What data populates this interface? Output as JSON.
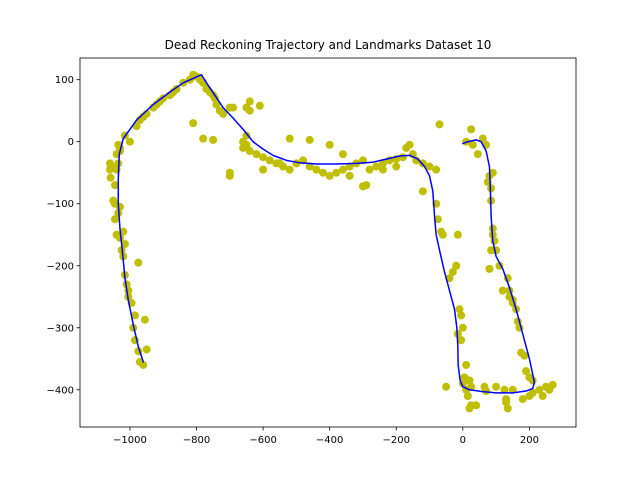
{
  "chart_data": {
    "type": "scatter",
    "title": "Dead Reckoning Trajectory and Landmarks Dataset 10",
    "xlabel": "",
    "ylabel": "",
    "xlim": [
      -1150,
      340
    ],
    "ylim": [
      -460,
      135
    ],
    "x_ticks": [
      -1000,
      -800,
      -600,
      -400,
      -200,
      0,
      200
    ],
    "x_tick_labels": [
      "−1000",
      "−800",
      "−600",
      "−400",
      "−200",
      "0",
      "200"
    ],
    "y_ticks": [
      100,
      0,
      -100,
      -200,
      -300,
      -400
    ],
    "y_tick_labels": [
      "100",
      "0",
      "−100",
      "−200",
      "−300",
      "−400"
    ],
    "grid": false,
    "legend": "none",
    "colors": {
      "landmarks": "#bfbf00",
      "trajectory": "#0000ff",
      "axes": "#000000"
    },
    "series": [
      {
        "kind": "scatter",
        "marker": "circle",
        "points": [
          [
            -970,
            -355
          ],
          [
            -960,
            -360
          ],
          [
            -950,
            -335
          ],
          [
            -955,
            -287
          ],
          [
            -975,
            -338
          ],
          [
            -985,
            -320
          ],
          [
            -990,
            -300
          ],
          [
            -985,
            -280
          ],
          [
            -995,
            -260
          ],
          [
            -1005,
            -250
          ],
          [
            -1010,
            -230
          ],
          [
            -1015,
            -215
          ],
          [
            -1005,
            -240
          ],
          [
            -975,
            -195
          ],
          [
            -1020,
            -185
          ],
          [
            -1025,
            -175
          ],
          [
            -1015,
            -165
          ],
          [
            -1020,
            -145
          ],
          [
            -1030,
            -155
          ],
          [
            -1040,
            -150
          ],
          [
            -1045,
            -125
          ],
          [
            -1035,
            -115
          ],
          [
            -1045,
            -100
          ],
          [
            -1050,
            -95
          ],
          [
            -1030,
            -105
          ],
          [
            -1045,
            -70
          ],
          [
            -1040,
            -45
          ],
          [
            -1035,
            -35
          ],
          [
            -1040,
            -20
          ],
          [
            -1030,
            -15
          ],
          [
            -1035,
            -5
          ],
          [
            -1030,
            -10
          ],
          [
            -1060,
            -35
          ],
          [
            -1060,
            -45
          ],
          [
            -1058,
            -58
          ],
          [
            -1055,
            -40
          ],
          [
            -1000,
            0
          ],
          [
            -1015,
            10
          ],
          [
            -980,
            25
          ],
          [
            -970,
            35
          ],
          [
            -960,
            40
          ],
          [
            -950,
            45
          ],
          [
            -930,
            55
          ],
          [
            -920,
            60
          ],
          [
            -910,
            65
          ],
          [
            -900,
            70
          ],
          [
            -880,
            75
          ],
          [
            -870,
            80
          ],
          [
            -860,
            85
          ],
          [
            -840,
            95
          ],
          [
            -820,
            100
          ],
          [
            -810,
            108
          ],
          [
            -800,
            105
          ],
          [
            -790,
            100
          ],
          [
            -780,
            95
          ],
          [
            -770,
            85
          ],
          [
            -760,
            80
          ],
          [
            -750,
            75
          ],
          [
            -745,
            70
          ],
          [
            -740,
            60
          ],
          [
            -730,
            50
          ],
          [
            -720,
            45
          ],
          [
            -700,
            55
          ],
          [
            -690,
            55
          ],
          [
            -650,
            55
          ],
          [
            -640,
            50
          ],
          [
            -640,
            65
          ],
          [
            -610,
            58
          ],
          [
            -650,
            10
          ],
          [
            -660,
            0
          ],
          [
            -650,
            -5
          ],
          [
            -660,
            -10
          ],
          [
            -640,
            -15
          ],
          [
            -620,
            -20
          ],
          [
            -600,
            -25
          ],
          [
            -580,
            -30
          ],
          [
            -560,
            -35
          ],
          [
            -540,
            -40
          ],
          [
            -520,
            -45
          ],
          [
            -500,
            -35
          ],
          [
            -480,
            -30
          ],
          [
            -460,
            -40
          ],
          [
            -440,
            -45
          ],
          [
            -420,
            -50
          ],
          [
            -400,
            -55
          ],
          [
            -380,
            -50
          ],
          [
            -360,
            -45
          ],
          [
            -340,
            -40
          ],
          [
            -320,
            -35
          ],
          [
            -300,
            -30
          ],
          [
            -280,
            -45
          ],
          [
            -260,
            -40
          ],
          [
            -240,
            -35
          ],
          [
            -220,
            -30
          ],
          [
            -200,
            -28
          ],
          [
            -180,
            -25
          ],
          [
            -170,
            -10
          ],
          [
            -160,
            -5
          ],
          [
            -150,
            -20
          ],
          [
            -140,
            -30
          ],
          [
            -120,
            -35
          ],
          [
            -100,
            -40
          ],
          [
            -80,
            -45
          ],
          [
            -810,
            30
          ],
          [
            -780,
            5
          ],
          [
            -750,
            3
          ],
          [
            -700,
            -50
          ],
          [
            -700,
            -55
          ],
          [
            -600,
            -45
          ],
          [
            -550,
            -35
          ],
          [
            -520,
            5
          ],
          [
            -460,
            3
          ],
          [
            -400,
            -5
          ],
          [
            -360,
            -20
          ],
          [
            -340,
            -55
          ],
          [
            -300,
            -72
          ],
          [
            -290,
            -70
          ],
          [
            -240,
            -45
          ],
          [
            -200,
            -40
          ],
          [
            -70,
            28
          ],
          [
            -120,
            -80
          ],
          [
            -80,
            -100
          ],
          [
            -75,
            -125
          ],
          [
            -65,
            -145
          ],
          [
            -60,
            -150
          ],
          [
            -40,
            -220
          ],
          [
            -30,
            -210
          ],
          [
            -20,
            -200
          ],
          [
            -15,
            -150
          ],
          [
            -10,
            -270
          ],
          [
            -5,
            -280
          ],
          [
            0,
            -300
          ],
          [
            -15,
            -310
          ],
          [
            -5,
            -320
          ],
          [
            10,
            -360
          ],
          [
            5,
            -380
          ],
          [
            0,
            -390
          ],
          [
            10,
            -400
          ],
          [
            15,
            -410
          ],
          [
            20,
            -430
          ],
          [
            25,
            -425
          ],
          [
            40,
            -425
          ],
          [
            -50,
            -395
          ],
          [
            20,
            -385
          ],
          [
            25,
            -395
          ],
          [
            10,
            0
          ],
          [
            25,
            20
          ],
          [
            30,
            -5
          ],
          [
            45,
            -20
          ],
          [
            60,
            5
          ],
          [
            70,
            -5
          ],
          [
            80,
            -55
          ],
          [
            75,
            -65
          ],
          [
            90,
            -50
          ],
          [
            85,
            -75
          ],
          [
            85,
            -95
          ],
          [
            90,
            -140
          ],
          [
            85,
            -175
          ],
          [
            80,
            -205
          ],
          [
            90,
            -150
          ],
          [
            95,
            -160
          ],
          [
            100,
            -175
          ],
          [
            110,
            -200
          ],
          [
            120,
            -240
          ],
          [
            135,
            -220
          ],
          [
            140,
            -250
          ],
          [
            150,
            -255
          ],
          [
            160,
            -270
          ],
          [
            165,
            -290
          ],
          [
            170,
            -300
          ],
          [
            175,
            -340
          ],
          [
            185,
            -345
          ],
          [
            190,
            -370
          ],
          [
            200,
            -380
          ],
          [
            210,
            -385
          ],
          [
            230,
            -400
          ],
          [
            240,
            -410
          ],
          [
            250,
            -395
          ],
          [
            260,
            -400
          ],
          [
            270,
            -392
          ],
          [
            210,
            -405
          ],
          [
            200,
            -410
          ],
          [
            180,
            -415
          ],
          [
            150,
            -400
          ],
          [
            130,
            -420
          ],
          [
            135,
            -430
          ],
          [
            130,
            -415
          ],
          [
            125,
            -400
          ],
          [
            100,
            -395
          ],
          [
            65,
            -395
          ],
          [
            70,
            -402
          ],
          [
            140,
            -240
          ],
          [
            150,
            -260
          ]
        ]
      },
      {
        "kind": "line",
        "points": [
          [
            -960,
            -355
          ],
          [
            -975,
            -330
          ],
          [
            -990,
            -295
          ],
          [
            -1005,
            -255
          ],
          [
            -1015,
            -220
          ],
          [
            -1022,
            -180
          ],
          [
            -1030,
            -140
          ],
          [
            -1035,
            -100
          ],
          [
            -1035,
            -60
          ],
          [
            -1032,
            -20
          ],
          [
            -1020,
            5
          ],
          [
            -980,
            35
          ],
          [
            -930,
            60
          ],
          [
            -880,
            80
          ],
          [
            -840,
            95
          ],
          [
            -810,
            102
          ],
          [
            -785,
            108
          ],
          [
            -770,
            95
          ],
          [
            -745,
            75
          ],
          [
            -720,
            55
          ],
          [
            -690,
            38
          ],
          [
            -660,
            20
          ],
          [
            -630,
            0
          ],
          [
            -600,
            -12
          ],
          [
            -570,
            -22
          ],
          [
            -530,
            -30
          ],
          [
            -490,
            -34
          ],
          [
            -440,
            -36
          ],
          [
            -380,
            -36
          ],
          [
            -320,
            -35
          ],
          [
            -270,
            -33
          ],
          [
            -230,
            -28
          ],
          [
            -190,
            -23
          ],
          [
            -160,
            -22
          ],
          [
            -135,
            -28
          ],
          [
            -115,
            -40
          ],
          [
            -100,
            -55
          ],
          [
            -90,
            -80
          ],
          [
            -85,
            -120
          ],
          [
            -80,
            -150
          ],
          [
            -70,
            -175
          ],
          [
            -55,
            -210
          ],
          [
            -40,
            -240
          ],
          [
            -25,
            -270
          ],
          [
            -18,
            -300
          ],
          [
            -15,
            -330
          ],
          [
            -14,
            -360
          ],
          [
            -8,
            -385
          ],
          [
            0,
            -395
          ],
          [
            20,
            -400
          ],
          [
            60,
            -403
          ],
          [
            100,
            -405
          ],
          [
            150,
            -405
          ],
          [
            190,
            -402
          ],
          [
            210,
            -398
          ],
          [
            215,
            -388
          ],
          [
            200,
            -350
          ],
          [
            180,
            -310
          ],
          [
            160,
            -270
          ],
          [
            140,
            -235
          ],
          [
            120,
            -205
          ],
          [
            100,
            -185
          ],
          [
            90,
            -160
          ],
          [
            85,
            -120
          ],
          [
            83,
            -80
          ],
          [
            80,
            -40
          ],
          [
            70,
            -15
          ],
          [
            55,
            0
          ],
          [
            40,
            3
          ],
          [
            15,
            0
          ],
          [
            0,
            -3
          ]
        ]
      }
    ]
  }
}
